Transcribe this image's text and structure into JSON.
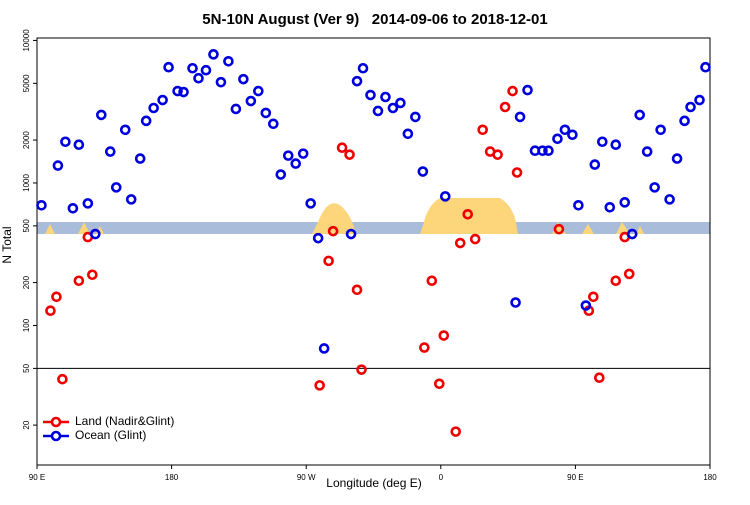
{
  "chart_data": {
    "type": "scatter",
    "title": "5N-10N August (Ver 9)   2014-09-06 to 2018-12-01",
    "xlabel": "Longitude (deg E)",
    "ylabel": "N Total",
    "ylog": true,
    "legend": "lower left",
    "hline": 50,
    "xlim": [
      90,
      540
    ],
    "ylim": [
      10.5,
      10400
    ],
    "xticks": [
      {
        "value": 90,
        "label": "90 E"
      },
      180,
      {
        "value": 270,
        "label": "90 W"
      },
      {
        "value": 360,
        "label": "0"
      },
      {
        "value": 450,
        "label": "90 E"
      },
      {
        "value": 540,
        "label": "180"
      }
    ],
    "yticks": [
      20,
      50,
      100,
      200,
      500,
      1000,
      2000,
      5000,
      10000
    ],
    "series": [
      {
        "name": "Land (Nadir&Glint)",
        "color": "#ee0000",
        "x": [
          99,
          103,
          107,
          118,
          124,
          127,
          279,
          285,
          288,
          294,
          299,
          304,
          307,
          349,
          354,
          359,
          362,
          370,
          373,
          378,
          383,
          388,
          393,
          398,
          403,
          408,
          411,
          439,
          459,
          462,
          466,
          477,
          483,
          486
        ],
        "values": [
          127,
          159,
          42,
          206,
          417,
          227,
          38,
          284,
          459,
          1767,
          1580,
          178,
          49,
          70,
          206,
          39,
          85,
          18,
          379,
          603,
          404,
          2360,
          1660,
          1580,
          3412,
          4413,
          1184,
          474,
          127,
          159,
          43,
          206,
          417,
          230
        ]
      },
      {
        "name": "Ocean (Glint)",
        "color": "#0000dd",
        "x": [
          93,
          104,
          109,
          114,
          118,
          124,
          129,
          133,
          139,
          143,
          149,
          153,
          159,
          163,
          168,
          174,
          178,
          184,
          188,
          194,
          198,
          203,
          208,
          213,
          218,
          223,
          228,
          233,
          238,
          243,
          248,
          253,
          258,
          263,
          268,
          273,
          278,
          282,
          300,
          304,
          308,
          313,
          318,
          323,
          328,
          333,
          338,
          343,
          348,
          363,
          410,
          413,
          418,
          423,
          428,
          432,
          438,
          443,
          448,
          452,
          457,
          463,
          468,
          473,
          477,
          483,
          488,
          493,
          498,
          503,
          507,
          513,
          518,
          523,
          527,
          533,
          537
        ],
        "values": [
          697,
          1324,
          1946,
          664,
          1855,
          719,
          438,
          3003,
          1660,
          931,
          2360,
          767,
          1482,
          2727,
          3357,
          3819,
          6486,
          4413,
          4345,
          6380,
          5433,
          6180,
          7985,
          5096,
          7138,
          3306,
          5350,
          3757,
          4413,
          3100,
          2600,
          1146,
          1555,
          1367,
          1606,
          719,
          410,
          69,
          438,
          5180,
          6380,
          4140,
          3200,
          4010,
          3357,
          3640,
          2213,
          2906,
          1203,
          805,
          145,
          2906,
          4484,
          1684,
          1684,
          1684,
          2042,
          2360,
          2178,
          697,
          138,
          1346,
          1946,
          675,
          1855,
          731,
          438,
          3003,
          1660,
          931,
          2360,
          767,
          1482,
          2727,
          3412,
          3819,
          6486
        ]
      }
    ]
  }
}
